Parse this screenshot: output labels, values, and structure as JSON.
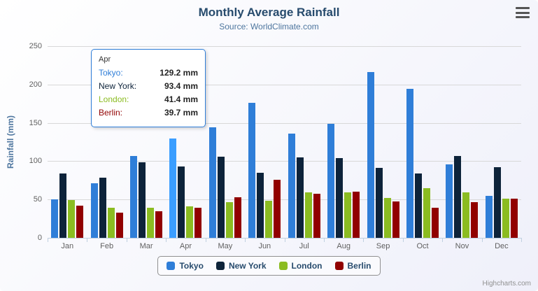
{
  "chart": {
    "title": "Monthly Average Rainfall",
    "subtitle": "Source: WorldClimate.com"
  },
  "chart_data": {
    "type": "bar",
    "title": "Monthly Average Rainfall",
    "subtitle": "Source: WorldClimate.com",
    "categories": [
      "Jan",
      "Feb",
      "Mar",
      "Apr",
      "May",
      "Jun",
      "Jul",
      "Aug",
      "Sep",
      "Oct",
      "Nov",
      "Dec"
    ],
    "series": [
      {
        "name": "Tokyo",
        "color": "#2f7ed8",
        "values": [
          49.9,
          71.5,
          106.4,
          129.2,
          144.0,
          176.0,
          135.6,
          148.5,
          216.4,
          194.1,
          95.6,
          54.4
        ]
      },
      {
        "name": "New York",
        "color": "#0d233a",
        "values": [
          83.6,
          78.8,
          98.5,
          93.4,
          106.0,
          84.5,
          105.0,
          104.3,
          91.2,
          83.5,
          106.6,
          92.3
        ]
      },
      {
        "name": "London",
        "color": "#8bbc21",
        "values": [
          48.9,
          38.8,
          39.3,
          41.4,
          47.0,
          48.3,
          59.0,
          59.6,
          52.4,
          65.2,
          59.3,
          51.2
        ]
      },
      {
        "name": "Berlin",
        "color": "#910000",
        "values": [
          42.4,
          33.2,
          34.5,
          39.7,
          52.6,
          75.5,
          57.4,
          60.4,
          47.6,
          39.1,
          46.8,
          51.1
        ]
      }
    ],
    "xlabel": "",
    "ylabel": "Rainfall (mm)",
    "ylim": [
      0,
      250
    ],
    "ytick_interval": 50,
    "grid": true,
    "legend_position": "bottom"
  },
  "tooltip": {
    "header": "Apr",
    "rows": [
      {
        "label": "Tokyo:",
        "value": "129.2 mm",
        "color": "#2f7ed8"
      },
      {
        "label": "New York:",
        "value": "93.4 mm",
        "color": "#0d233a"
      },
      {
        "label": "London:",
        "value": "41.4 mm",
        "color": "#8bbc21"
      },
      {
        "label": "Berlin:",
        "value": "39.7 mm",
        "color": "#910000"
      }
    ],
    "highlight": {
      "series": "Tokyo",
      "category": "Apr"
    }
  },
  "credits": "Highcharts.com"
}
